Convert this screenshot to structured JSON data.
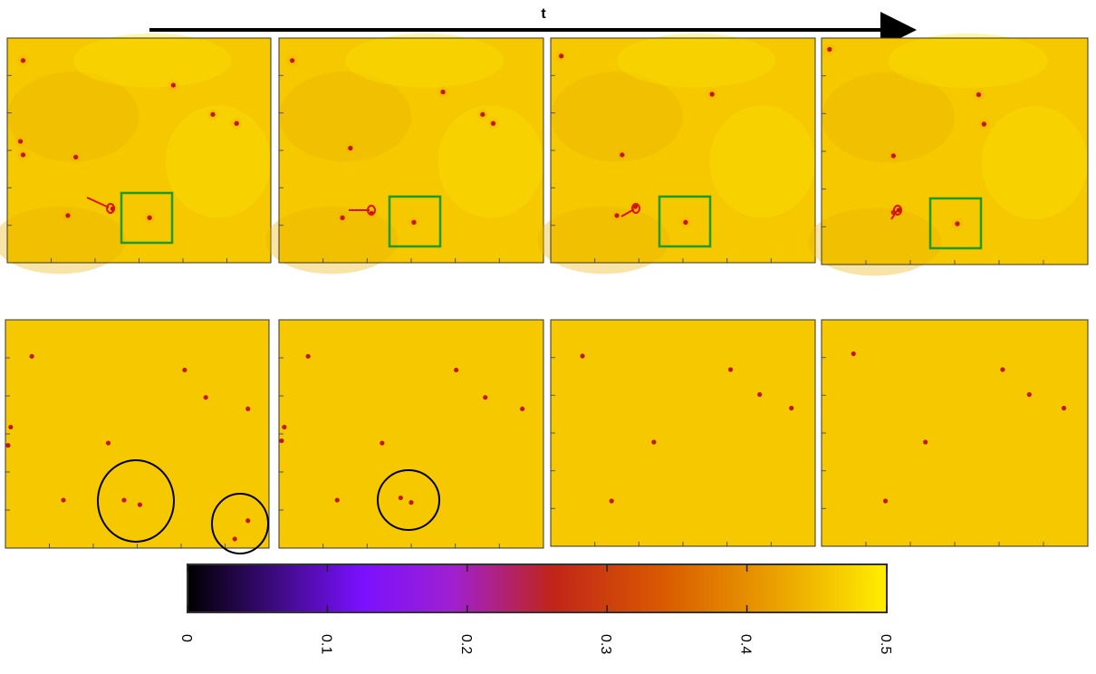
{
  "figure": {
    "time_label": "t"
  },
  "colorbar": {
    "min": 0,
    "max": 0.5,
    "ticks": [
      "0",
      "0.1",
      "0.2",
      "0.3",
      "0.4",
      "0.5"
    ],
    "colors": [
      "#000000",
      "#3a0a7a",
      "#7a10ff",
      "#a020d0",
      "#c0241a",
      "#d95a00",
      "#eaa000",
      "#ffee00"
    ]
  },
  "colors": {
    "field": "#f5c800",
    "field_light": "#ffe600",
    "field_dark": "#eab200",
    "core": "#c01818",
    "highlight_box": "#1f9a1f",
    "trace": "#e01010",
    "circle": "#000000"
  },
  "chart_data": {
    "type": "heatmap",
    "layout": "2 rows x 4 time frames",
    "value_range": [
      0,
      0.5
    ],
    "rows": [
      {
        "row": 1,
        "frames": [
          {
            "points": [
              [
                0.06,
                0.1
              ],
              [
                0.63,
                0.21
              ],
              [
                0.78,
                0.34
              ],
              [
                0.87,
                0.38
              ],
              [
                0.05,
                0.46
              ],
              [
                0.06,
                0.52
              ],
              [
                0.26,
                0.53
              ],
              [
                0.23,
                0.79
              ],
              [
                0.4,
                0.76
              ],
              [
                0.54,
                0.8
              ]
            ]
          },
          {
            "points": [
              [
                0.05,
                0.1
              ],
              [
                0.62,
                0.24
              ],
              [
                0.77,
                0.34
              ],
              [
                0.81,
                0.38
              ],
              [
                0.27,
                0.49
              ],
              [
                0.24,
                0.8
              ],
              [
                0.35,
                0.78
              ],
              [
                0.51,
                0.82
              ]
            ]
          },
          {
            "points": [
              [
                0.04,
                0.08
              ],
              [
                0.61,
                0.25
              ],
              [
                0.27,
                0.52
              ],
              [
                0.25,
                0.79
              ],
              [
                0.32,
                0.75
              ],
              [
                0.51,
                0.82
              ]
            ]
          },
          {
            "points": [
              [
                0.03,
                0.05
              ],
              [
                0.59,
                0.25
              ],
              [
                0.61,
                0.38
              ],
              [
                0.27,
                0.52
              ],
              [
                0.27,
                0.77
              ],
              [
                0.29,
                0.76
              ],
              [
                0.51,
                0.82
              ]
            ]
          }
        ]
      },
      {
        "row": 2,
        "frames": [
          {
            "points": [
              [
                0.1,
                0.16
              ],
              [
                0.68,
                0.22
              ],
              [
                0.76,
                0.34
              ],
              [
                0.92,
                0.39
              ],
              [
                0.02,
                0.47
              ],
              [
                0.01,
                0.55
              ],
              [
                0.39,
                0.54
              ],
              [
                0.22,
                0.79
              ],
              [
                0.45,
                0.79
              ],
              [
                0.51,
                0.81
              ],
              [
                0.92,
                0.88
              ],
              [
                0.87,
                0.96
              ]
            ]
          },
          {
            "points": [
              [
                0.11,
                0.16
              ],
              [
                0.67,
                0.22
              ],
              [
                0.78,
                0.34
              ],
              [
                0.92,
                0.39
              ],
              [
                0.02,
                0.47
              ],
              [
                0.01,
                0.53
              ],
              [
                0.39,
                0.54
              ],
              [
                0.22,
                0.79
              ],
              [
                0.46,
                0.78
              ],
              [
                0.5,
                0.8
              ]
            ]
          },
          {
            "points": [
              [
                0.12,
                0.16
              ],
              [
                0.68,
                0.22
              ],
              [
                0.79,
                0.33
              ],
              [
                0.91,
                0.39
              ],
              [
                0.39,
                0.54
              ],
              [
                0.23,
                0.8
              ]
            ]
          },
          {
            "points": [
              [
                0.12,
                0.15
              ],
              [
                0.68,
                0.22
              ],
              [
                0.78,
                0.33
              ],
              [
                0.91,
                0.39
              ],
              [
                0.39,
                0.54
              ],
              [
                0.24,
                0.8
              ]
            ]
          }
        ]
      }
    ]
  }
}
